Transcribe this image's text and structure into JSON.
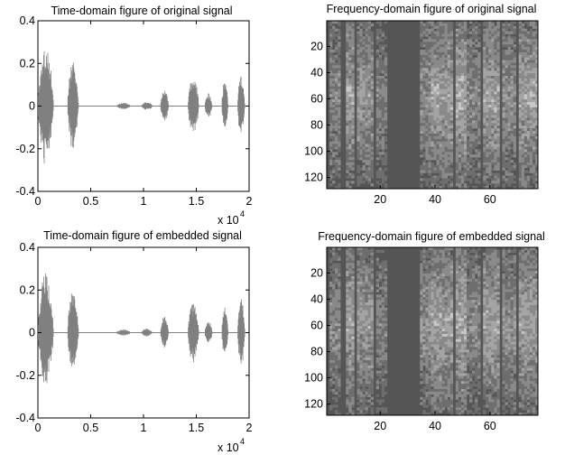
{
  "chart_data": [
    {
      "type": "line",
      "title": "Time-domain figure of original signal",
      "xlim": [
        0,
        20000
      ],
      "ylim": [
        -0.4,
        0.4
      ],
      "x_ticks": [
        0,
        0.5,
        1,
        1.5,
        2
      ],
      "y_ticks": [
        0.4,
        0.2,
        0,
        -0.2,
        -0.4
      ],
      "x_multiplier": "x 10",
      "x_multiplier_exp": "4",
      "line_color": "#808080",
      "segments": [
        {
          "start": 0,
          "end": 1700,
          "amp": 0.28
        },
        {
          "start": 2800,
          "end": 4000,
          "amp": 0.21
        },
        {
          "start": 7400,
          "end": 9000,
          "amp": 0.015
        },
        {
          "start": 9800,
          "end": 11000,
          "amp": 0.02
        },
        {
          "start": 11600,
          "end": 12500,
          "amp": 0.08
        },
        {
          "start": 14200,
          "end": 15400,
          "amp": 0.14
        },
        {
          "start": 15800,
          "end": 16600,
          "amp": 0.06
        },
        {
          "start": 17400,
          "end": 18100,
          "amp": 0.12
        },
        {
          "start": 18900,
          "end": 19700,
          "amp": 0.16
        }
      ]
    },
    {
      "type": "heatmap",
      "title": "Frequency-domain figure of original signal",
      "xlim": [
        0.5,
        77.5
      ],
      "ylim": [
        0.5,
        128.5
      ],
      "x_ticks": [
        20,
        40,
        60
      ],
      "y_ticks": [
        20,
        40,
        60,
        80,
        100,
        120
      ],
      "n_cols": 77,
      "n_rows": 128,
      "color_dark": "#555555",
      "color_light": "#c8c8c8",
      "seed": 7
    },
    {
      "type": "line",
      "title": "Time-domain figure of embedded signal",
      "xlim": [
        0,
        20000
      ],
      "ylim": [
        -0.4,
        0.4
      ],
      "x_ticks": [
        0,
        0.5,
        1,
        1.5,
        2
      ],
      "y_ticks": [
        0.4,
        0.2,
        0,
        -0.2,
        -0.4
      ],
      "x_multiplier": "x 10",
      "x_multiplier_exp": "4",
      "line_color": "#808080",
      "segments": [
        {
          "start": 0,
          "end": 1700,
          "amp": 0.28
        },
        {
          "start": 2800,
          "end": 4000,
          "amp": 0.21
        },
        {
          "start": 7400,
          "end": 9000,
          "amp": 0.015
        },
        {
          "start": 9800,
          "end": 11000,
          "amp": 0.02
        },
        {
          "start": 11600,
          "end": 12500,
          "amp": 0.08
        },
        {
          "start": 14200,
          "end": 15400,
          "amp": 0.14
        },
        {
          "start": 15800,
          "end": 16600,
          "amp": 0.06
        },
        {
          "start": 17400,
          "end": 18100,
          "amp": 0.12
        },
        {
          "start": 18900,
          "end": 19700,
          "amp": 0.16
        }
      ]
    },
    {
      "type": "heatmap",
      "title": "Frequency-domain figure of embedded signal",
      "xlim": [
        0.5,
        77.5
      ],
      "ylim": [
        0.5,
        128.5
      ],
      "x_ticks": [
        20,
        40,
        60
      ],
      "y_ticks": [
        20,
        40,
        60,
        80,
        100,
        120
      ],
      "n_cols": 77,
      "n_rows": 128,
      "color_dark": "#555555",
      "color_light": "#c8c8c8",
      "seed": 11
    }
  ]
}
